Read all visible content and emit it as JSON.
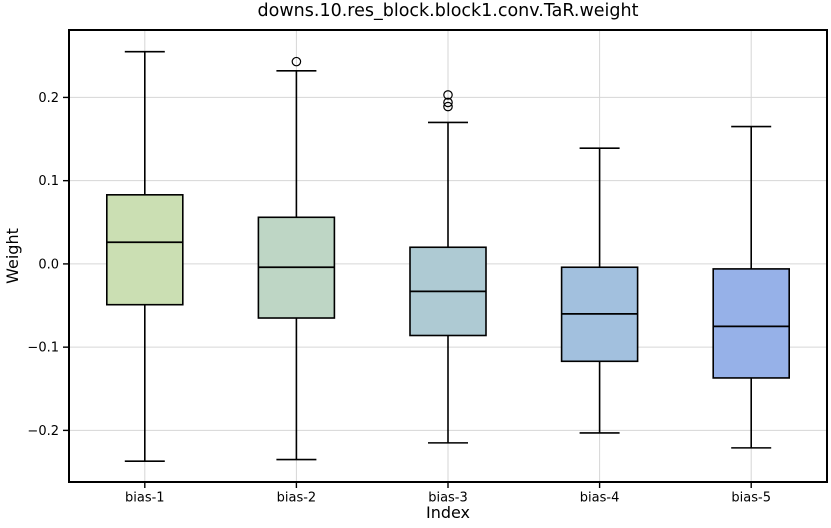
{
  "chart_data": {
    "type": "boxplot",
    "title": "downs.10.res_block.block1.conv.TaR.weight",
    "xlabel": "Index",
    "ylabel": "Weight",
    "categories": [
      "bias-1",
      "bias-2",
      "bias-3",
      "bias-4",
      "bias-5"
    ],
    "ylim": [
      -0.262,
      0.281
    ],
    "yticks": [
      0.2,
      0.1,
      0.0,
      -0.1,
      -0.2
    ],
    "ytick_labels": [
      "0.2",
      "0.1",
      "0.0",
      "−0.1",
      "−0.2"
    ],
    "grid": true,
    "legend": "none",
    "series": [
      {
        "name": "bias-1",
        "whisker_low": -0.237,
        "q1": -0.049,
        "median": 0.026,
        "q3": 0.083,
        "whisker_high": 0.255,
        "outliers": [],
        "fill": "#cbdfb3"
      },
      {
        "name": "bias-2",
        "whisker_low": -0.235,
        "q1": -0.065,
        "median": -0.004,
        "q3": 0.056,
        "whisker_high": 0.232,
        "outliers": [
          0.243
        ],
        "fill": "#bed6c5"
      },
      {
        "name": "bias-3",
        "whisker_low": -0.215,
        "q1": -0.086,
        "median": -0.033,
        "q3": 0.02,
        "whisker_high": 0.17,
        "outliers": [
          0.203,
          0.194,
          0.189
        ],
        "fill": "#aecad3"
      },
      {
        "name": "bias-4",
        "whisker_low": -0.203,
        "q1": -0.117,
        "median": -0.06,
        "q3": -0.004,
        "whisker_high": 0.139,
        "outliers": [],
        "fill": "#a2c0de"
      },
      {
        "name": "bias-5",
        "whisker_low": -0.221,
        "q1": -0.137,
        "median": -0.075,
        "q3": -0.006,
        "whisker_high": 0.165,
        "outliers": [],
        "fill": "#96b1e8"
      }
    ],
    "colors": {
      "box_edge": "#000000",
      "median": "#000000",
      "whisker": "#000000",
      "grid": "#d6d6d6",
      "spine": "#000000",
      "background": "#ffffff"
    }
  }
}
